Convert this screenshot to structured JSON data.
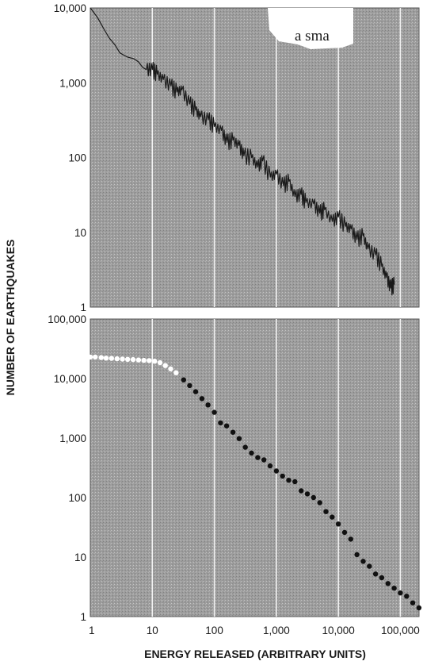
{
  "chart_data": [
    {
      "type": "line",
      "panel": "top",
      "ylabel": "NUMBER OF EARTHQUAKES",
      "xscale": "log",
      "yscale": "log",
      "xlim": [
        1,
        200000
      ],
      "ylim": [
        1,
        10000
      ],
      "x_ticks": [
        1,
        10,
        100,
        1000,
        10000,
        100000
      ],
      "y_ticks": [
        1,
        10,
        100,
        1000,
        10000
      ],
      "y_tick_labels": [
        "1",
        "10",
        "100",
        "1,000",
        "10,000"
      ],
      "grid": "vertical",
      "annotation": "a  sma",
      "series": [
        {
          "x": [
            1,
            1.3,
            1.6,
            2,
            2.5,
            3,
            4,
            5,
            6,
            7,
            8,
            10,
            12,
            15,
            20,
            25,
            30,
            40,
            50,
            60,
            80,
            100,
            130,
            160,
            200,
            250,
            300,
            400,
            500,
            600,
            800,
            1000,
            1300,
            1600,
            2000,
            2500,
            3000,
            4000,
            5000,
            6000,
            8000,
            10000,
            13000,
            16000,
            20000,
            25000,
            30000,
            40000,
            50000,
            60000,
            70000,
            80000
          ],
          "y": [
            10000,
            7500,
            5500,
            4000,
            3200,
            2500,
            2200,
            2100,
            1900,
            1600,
            1500,
            1500,
            1300,
            1100,
            900,
            750,
            800,
            520,
            430,
            350,
            320,
            260,
            230,
            160,
            170,
            145,
            105,
            100,
            75,
            90,
            55,
            60,
            42,
            48,
            30,
            32,
            25,
            24,
            18,
            20,
            14,
            16,
            12,
            11,
            8,
            9,
            6,
            5,
            3.5,
            2.5,
            1.8,
            2
          ]
        }
      ]
    },
    {
      "type": "scatter",
      "panel": "bottom",
      "xlabel": "ENERGY RELEASED (ARBITRARY UNITS)",
      "ylabel": "NUMBER OF EARTHQUAKES",
      "xscale": "log",
      "yscale": "log",
      "xlim": [
        1,
        200000
      ],
      "ylim": [
        1,
        100000
      ],
      "x_ticks": [
        1,
        10,
        100,
        1000,
        10000,
        100000
      ],
      "x_tick_labels": [
        "1",
        "10",
        "100",
        "1,000",
        "10,000",
        "100,000"
      ],
      "y_ticks": [
        1,
        10,
        100,
        1000,
        10000,
        100000
      ],
      "y_tick_labels": [
        "1",
        "10",
        "100",
        "1,000",
        "10,000",
        "100,000"
      ],
      "grid": "vertical",
      "series": [
        {
          "color": "#ffffff",
          "x": [
            1,
            1.2,
            1.5,
            1.8,
            2.2,
            2.7,
            3.3,
            4,
            4.9,
            6,
            7.3,
            8.9,
            10.9,
            13.3,
            16.2,
            19.8,
            24.2
          ],
          "y": [
            23000,
            23000,
            22500,
            22000,
            21800,
            21500,
            21200,
            21000,
            20800,
            20500,
            20200,
            20000,
            19500,
            18500,
            16500,
            14500,
            12500
          ]
        },
        {
          "color": "#111111",
          "x": [
            32,
            40,
            50,
            63,
            79,
            100,
            126,
            158,
            200,
            251,
            316,
            398,
            501,
            631,
            794,
            1000,
            1259,
            1585,
            1995,
            2512,
            3162,
            3981,
            5012,
            6310,
            7943,
            10000,
            12589,
            15849,
            19953,
            25119,
            31623,
            39811,
            50119,
            63096,
            79433,
            100000,
            125893,
            158489,
            199526
          ],
          "y": [
            9500,
            7600,
            6000,
            4600,
            3600,
            2700,
            1800,
            1600,
            1250,
            980,
            700,
            560,
            470,
            430,
            340,
            280,
            230,
            195,
            185,
            130,
            115,
            100,
            82,
            58,
            47,
            36,
            26,
            20,
            11,
            8.5,
            7,
            5.2,
            4.5,
            3.6,
            3,
            2.5,
            2.2,
            1.7,
            1.4
          ]
        }
      ]
    }
  ]
}
